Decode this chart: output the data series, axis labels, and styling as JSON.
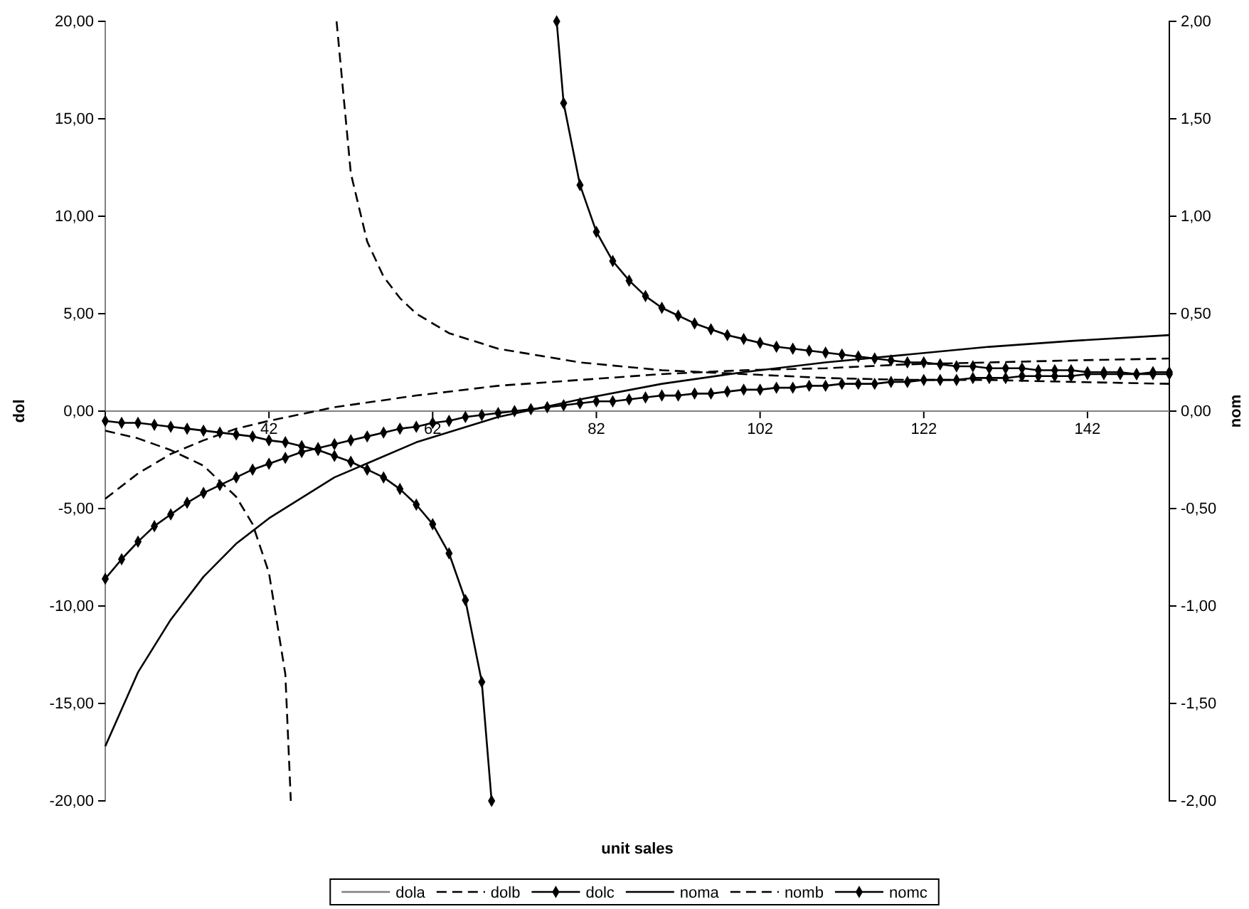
{
  "chart_data": {
    "type": "line",
    "xlabel": "unit sales",
    "ylabel": "dol",
    "y2label": "nom",
    "xlim": [
      22,
      152
    ],
    "xticks": [
      42,
      62,
      82,
      102,
      122,
      142
    ],
    "ylim": [
      -20,
      20
    ],
    "yticks": [
      {
        "value": -20,
        "label": "-20,00"
      },
      {
        "value": -15,
        "label": "-15,00"
      },
      {
        "value": -10,
        "label": "-10,00"
      },
      {
        "value": -5,
        "label": "-5,00"
      },
      {
        "value": 0,
        "label": "0,00"
      },
      {
        "value": 5,
        "label": "5,00"
      },
      {
        "value": 10,
        "label": "10,00"
      },
      {
        "value": 15,
        "label": "15,00"
      },
      {
        "value": 20,
        "label": "20,00"
      }
    ],
    "y2lim": [
      -2,
      2
    ],
    "y2ticks": [
      {
        "value": -2,
        "label": "-2,00"
      },
      {
        "value": -1.5,
        "label": "-1,50"
      },
      {
        "value": -1,
        "label": "-1,00"
      },
      {
        "value": -0.5,
        "label": "-0,50"
      },
      {
        "value": 0,
        "label": "0,00"
      },
      {
        "value": 0.5,
        "label": "0,50"
      },
      {
        "value": 1,
        "label": "1,00"
      },
      {
        "value": 1.5,
        "label": "1,50"
      },
      {
        "value": 2,
        "label": "2,00"
      }
    ],
    "grid": false,
    "legend": "bottom",
    "series": [
      {
        "name": "dola",
        "color": "#808080",
        "line_style": "solid",
        "marker": "none",
        "x": [
          22,
          152
        ],
        "values": [
          0,
          0
        ]
      },
      {
        "name": "dolb",
        "color": "#000000",
        "line_style": "dashed",
        "marker": "none",
        "x": [
          22,
          26,
          30,
          34,
          38,
          40,
          42,
          44,
          44.67,
          47.5,
          50.26,
          52,
          54,
          56,
          58,
          60,
          64,
          70,
          80,
          90,
          100,
          110,
          120,
          130,
          140,
          152
        ],
        "values": [
          -1.0,
          -1.4,
          -2.0,
          -2.8,
          -4.4,
          -5.8,
          -8.3,
          -13.5,
          -20,
          null,
          20,
          12.2,
          8.7,
          6.9,
          5.8,
          5.0,
          4.0,
          3.2,
          2.5,
          2.1,
          1.9,
          1.7,
          1.6,
          1.6,
          1.5,
          1.4
        ]
      },
      {
        "name": "dolc",
        "color": "#000000",
        "line_style": "solid",
        "marker": "diamond",
        "x": [
          22,
          24,
          26,
          28,
          30,
          32,
          34,
          36,
          38,
          40,
          42,
          44,
          46,
          48,
          50,
          52,
          54,
          56,
          58,
          60,
          62,
          64,
          66,
          68,
          69.2,
          73,
          77.15,
          78,
          80,
          82,
          84,
          86,
          88,
          90,
          92,
          94,
          96,
          98,
          100,
          102,
          104,
          106,
          108,
          110,
          112,
          114,
          116,
          118,
          120,
          122,
          124,
          126,
          128,
          130,
          132,
          134,
          136,
          138,
          140,
          142,
          144,
          146,
          148,
          150,
          152
        ],
        "values": [
          -0.5,
          -0.6,
          -0.6,
          -0.7,
          -0.8,
          -0.9,
          -1.0,
          -1.1,
          -1.2,
          -1.3,
          -1.5,
          -1.6,
          -1.8,
          -2.0,
          -2.3,
          -2.6,
          -3.0,
          -3.4,
          -4.0,
          -4.8,
          -5.8,
          -7.3,
          -9.7,
          -13.9,
          -20,
          null,
          20,
          15.8,
          11.6,
          9.2,
          7.7,
          6.7,
          5.9,
          5.3,
          4.9,
          4.5,
          4.2,
          3.9,
          3.7,
          3.5,
          3.3,
          3.2,
          3.1,
          3.0,
          2.9,
          2.8,
          2.7,
          2.6,
          2.5,
          2.5,
          2.4,
          2.3,
          2.3,
          2.2,
          2.2,
          2.2,
          2.1,
          2.1,
          2.1,
          2.0,
          2.0,
          2.0,
          1.9,
          1.9,
          1.9
        ]
      },
      {
        "name": "noma",
        "color": "#000000",
        "line_style": "solid",
        "marker": "none",
        "axis": "y2",
        "x": [
          22,
          26,
          30,
          34,
          38,
          42,
          50,
          60,
          70,
          80,
          90,
          100,
          110,
          120,
          130,
          140,
          152
        ],
        "values": [
          -1.72,
          -1.34,
          -1.07,
          -0.85,
          -0.68,
          -0.55,
          -0.34,
          -0.16,
          -0.03,
          0.06,
          0.14,
          0.2,
          0.25,
          0.29,
          0.33,
          0.36,
          0.39
        ]
      },
      {
        "name": "nomb",
        "color": "#000000",
        "line_style": "dashed",
        "marker": "none",
        "axis": "y2",
        "x": [
          22,
          26,
          30,
          34,
          38,
          42,
          50,
          60,
          70,
          80,
          90,
          100,
          110,
          120,
          130,
          140,
          152
        ],
        "values": [
          -0.45,
          -0.32,
          -0.22,
          -0.15,
          -0.09,
          -0.05,
          0.02,
          0.08,
          0.13,
          0.16,
          0.19,
          0.21,
          0.22,
          0.24,
          0.25,
          0.26,
          0.27
        ]
      },
      {
        "name": "nomc",
        "color": "#000000",
        "line_style": "solid",
        "marker": "diamond",
        "axis": "y2",
        "x": [
          22,
          24,
          26,
          28,
          30,
          32,
          34,
          36,
          38,
          40,
          42,
          44,
          46,
          48,
          50,
          52,
          54,
          56,
          58,
          60,
          62,
          64,
          66,
          68,
          70,
          72,
          74,
          76,
          78,
          80,
          82,
          84,
          86,
          88,
          90,
          92,
          94,
          96,
          98,
          100,
          102,
          104,
          106,
          108,
          110,
          112,
          114,
          116,
          118,
          120,
          122,
          124,
          126,
          128,
          130,
          132,
          134,
          136,
          138,
          140,
          142,
          144,
          146,
          148,
          150,
          152
        ],
        "values": [
          -0.86,
          -0.76,
          -0.67,
          -0.59,
          -0.53,
          -0.47,
          -0.42,
          -0.38,
          -0.34,
          -0.3,
          -0.27,
          -0.24,
          -0.21,
          -0.19,
          -0.17,
          -0.15,
          -0.13,
          -0.11,
          -0.09,
          -0.08,
          -0.06,
          -0.05,
          -0.03,
          -0.02,
          -0.01,
          0.0,
          0.01,
          0.02,
          0.03,
          0.04,
          0.05,
          0.05,
          0.06,
          0.07,
          0.08,
          0.08,
          0.09,
          0.09,
          0.1,
          0.11,
          0.11,
          0.12,
          0.12,
          0.13,
          0.13,
          0.14,
          0.14,
          0.14,
          0.15,
          0.15,
          0.16,
          0.16,
          0.16,
          0.17,
          0.17,
          0.17,
          0.18,
          0.18,
          0.18,
          0.18,
          0.19,
          0.19,
          0.19,
          0.19,
          0.2,
          0.2
        ]
      }
    ]
  }
}
